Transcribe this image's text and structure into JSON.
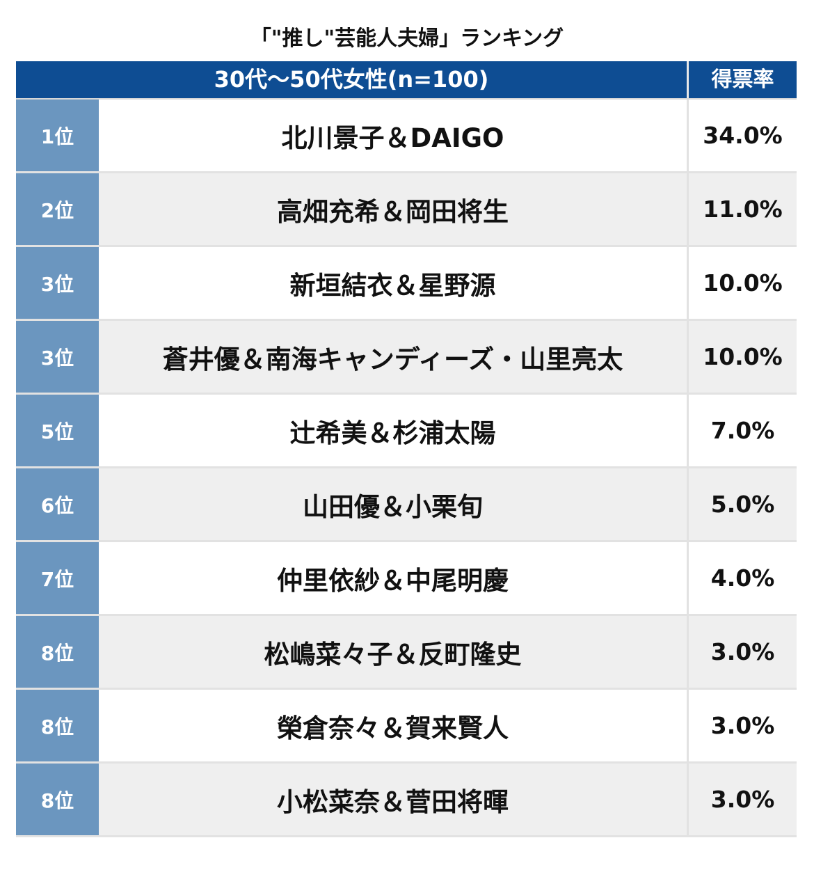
{
  "title": "「\"推し\"芸能人夫婦」ランキング",
  "colors": {
    "header_bg": "#0e4d93",
    "rank_bg": "#6b96bf",
    "alt_row_bg": "#efefef"
  },
  "header": {
    "group": "30代〜50代女性(n=100)",
    "rate": "得票率"
  },
  "rows": [
    {
      "rank": "1位",
      "name": "北川景子＆DAIGO",
      "rate": "34.0%"
    },
    {
      "rank": "2位",
      "name": "高畑充希＆岡田将生",
      "rate": "11.0%"
    },
    {
      "rank": "3位",
      "name": "新垣結衣＆星野源",
      "rate": "10.0%"
    },
    {
      "rank": "3位",
      "name": "蒼井優＆南海キャンディーズ・山里亮太",
      "rate": "10.0%"
    },
    {
      "rank": "5位",
      "name": "辻希美＆杉浦太陽",
      "rate": "7.0%"
    },
    {
      "rank": "6位",
      "name": "山田優＆小栗旬",
      "rate": "5.0%"
    },
    {
      "rank": "7位",
      "name": "仲里依紗＆中尾明慶",
      "rate": "4.0%"
    },
    {
      "rank": "8位",
      "name": "松嶋菜々子＆反町隆史",
      "rate": "3.0%"
    },
    {
      "rank": "8位",
      "name": "榮倉奈々＆賀来賢人",
      "rate": "3.0%"
    },
    {
      "rank": "8位",
      "name": "小松菜奈＆菅田将暉",
      "rate": "3.0%"
    }
  ]
}
